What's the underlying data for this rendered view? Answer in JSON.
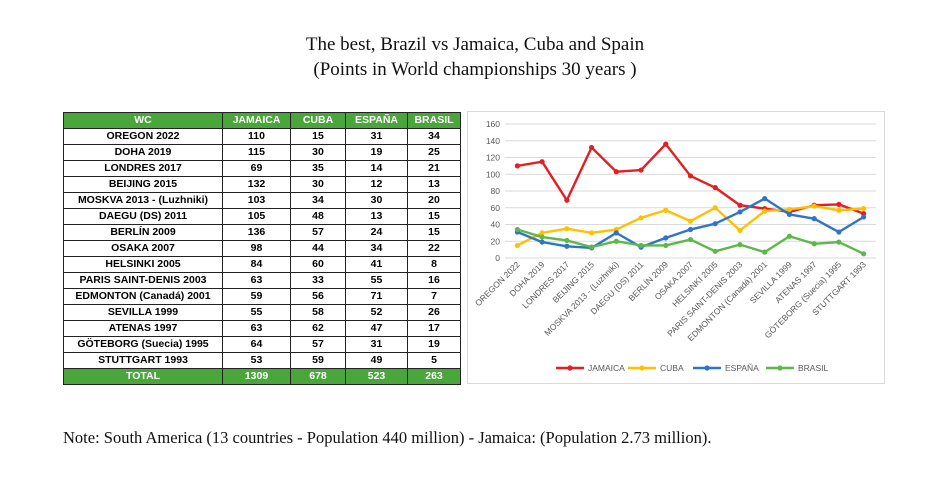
{
  "title": {
    "line1": "The best, Brazil vs Jamaica, Cuba and Spain",
    "line2": "(Points in World championships 30 years )"
  },
  "table": {
    "headers": [
      "WC",
      "JAMAICA",
      "CUBA",
      "ESPAÑA",
      "BRASIL"
    ],
    "rows": [
      [
        "OREGON 2022",
        "110",
        "15",
        "31",
        "34"
      ],
      [
        "DOHA 2019",
        "115",
        "30",
        "19",
        "25"
      ],
      [
        "LONDRES 2017",
        "69",
        "35",
        "14",
        "21"
      ],
      [
        "BEIJING 2015",
        "132",
        "30",
        "12",
        "13"
      ],
      [
        "MOSKVA 2013 - (Luzhniki)",
        "103",
        "34",
        "30",
        "20"
      ],
      [
        "DAEGU (DS) 2011",
        "105",
        "48",
        "13",
        "15"
      ],
      [
        "BERLÍN 2009",
        "136",
        "57",
        "24",
        "15"
      ],
      [
        "OSAKA 2007",
        "98",
        "44",
        "34",
        "22"
      ],
      [
        "HELSINKI 2005",
        "84",
        "60",
        "41",
        "8"
      ],
      [
        "PARIS SAINT-DENIS 2003",
        "63",
        "33",
        "55",
        "16"
      ],
      [
        "EDMONTON (Canadá) 2001",
        "59",
        "56",
        "71",
        "7"
      ],
      [
        "SEVILLA 1999",
        "55",
        "58",
        "52",
        "26"
      ],
      [
        "ATENAS 1997",
        "63",
        "62",
        "47",
        "17"
      ],
      [
        "GÖTEBORG (Suecia) 1995",
        "64",
        "57",
        "31",
        "19"
      ],
      [
        "STUTTGART 1993",
        "53",
        "59",
        "49",
        "5"
      ]
    ],
    "total": [
      "TOTAL",
      "1309",
      "678",
      "523",
      "263"
    ]
  },
  "colors": {
    "header_green": "#4aa63a",
    "jamaica": "#e31e24",
    "cuba": "#ffc000",
    "espana": "#2e75c8",
    "brasil": "#5cb848",
    "grid": "#d9d9d9",
    "axis_text": "#595959"
  },
  "chart_data": {
    "type": "line",
    "categories": [
      "OREGON 2022",
      "DOHA 2019",
      "LONDRES 2017",
      "BEIJING 2015",
      "MOSKVA 2013 - (Luzhniki)",
      "DAEGU (DS) 2011",
      "BERLÍN 2009",
      "OSAKA 2007",
      "HELSINKI 2005",
      "PARIS SAINT-DENIS 2003",
      "EDMONTON (Canadá) 2001",
      "SEVILLA 1999",
      "ATENAS 1997",
      "GÖTEBORG (Suecia) 1995",
      "STUTTGART 1993"
    ],
    "series": [
      {
        "name": "JAMAICA",
        "color": "#e31e24",
        "values": [
          110,
          115,
          69,
          132,
          103,
          105,
          136,
          98,
          84,
          63,
          59,
          55,
          63,
          64,
          53
        ]
      },
      {
        "name": "CUBA",
        "color": "#ffc000",
        "values": [
          15,
          30,
          35,
          30,
          34,
          48,
          57,
          44,
          60,
          33,
          56,
          58,
          62,
          57,
          59
        ]
      },
      {
        "name": "ESPAÑA",
        "color": "#2e75c8",
        "values": [
          31,
          19,
          14,
          12,
          30,
          13,
          24,
          34,
          41,
          55,
          71,
          52,
          47,
          31,
          49
        ]
      },
      {
        "name": "BRASIL",
        "color": "#5cb848",
        "values": [
          34,
          25,
          21,
          13,
          20,
          15,
          15,
          22,
          8,
          16,
          7,
          26,
          17,
          19,
          5
        ]
      }
    ],
    "yticks": [
      "0",
      "20",
      "40",
      "60",
      "80",
      "100",
      "120",
      "140",
      "160"
    ],
    "ylim": [
      0,
      160
    ],
    "grid": true,
    "legend": "bottom"
  },
  "note": "Note: South America (13 countries - Population 440 million) - Jamaica: (Population 2.73 million)."
}
